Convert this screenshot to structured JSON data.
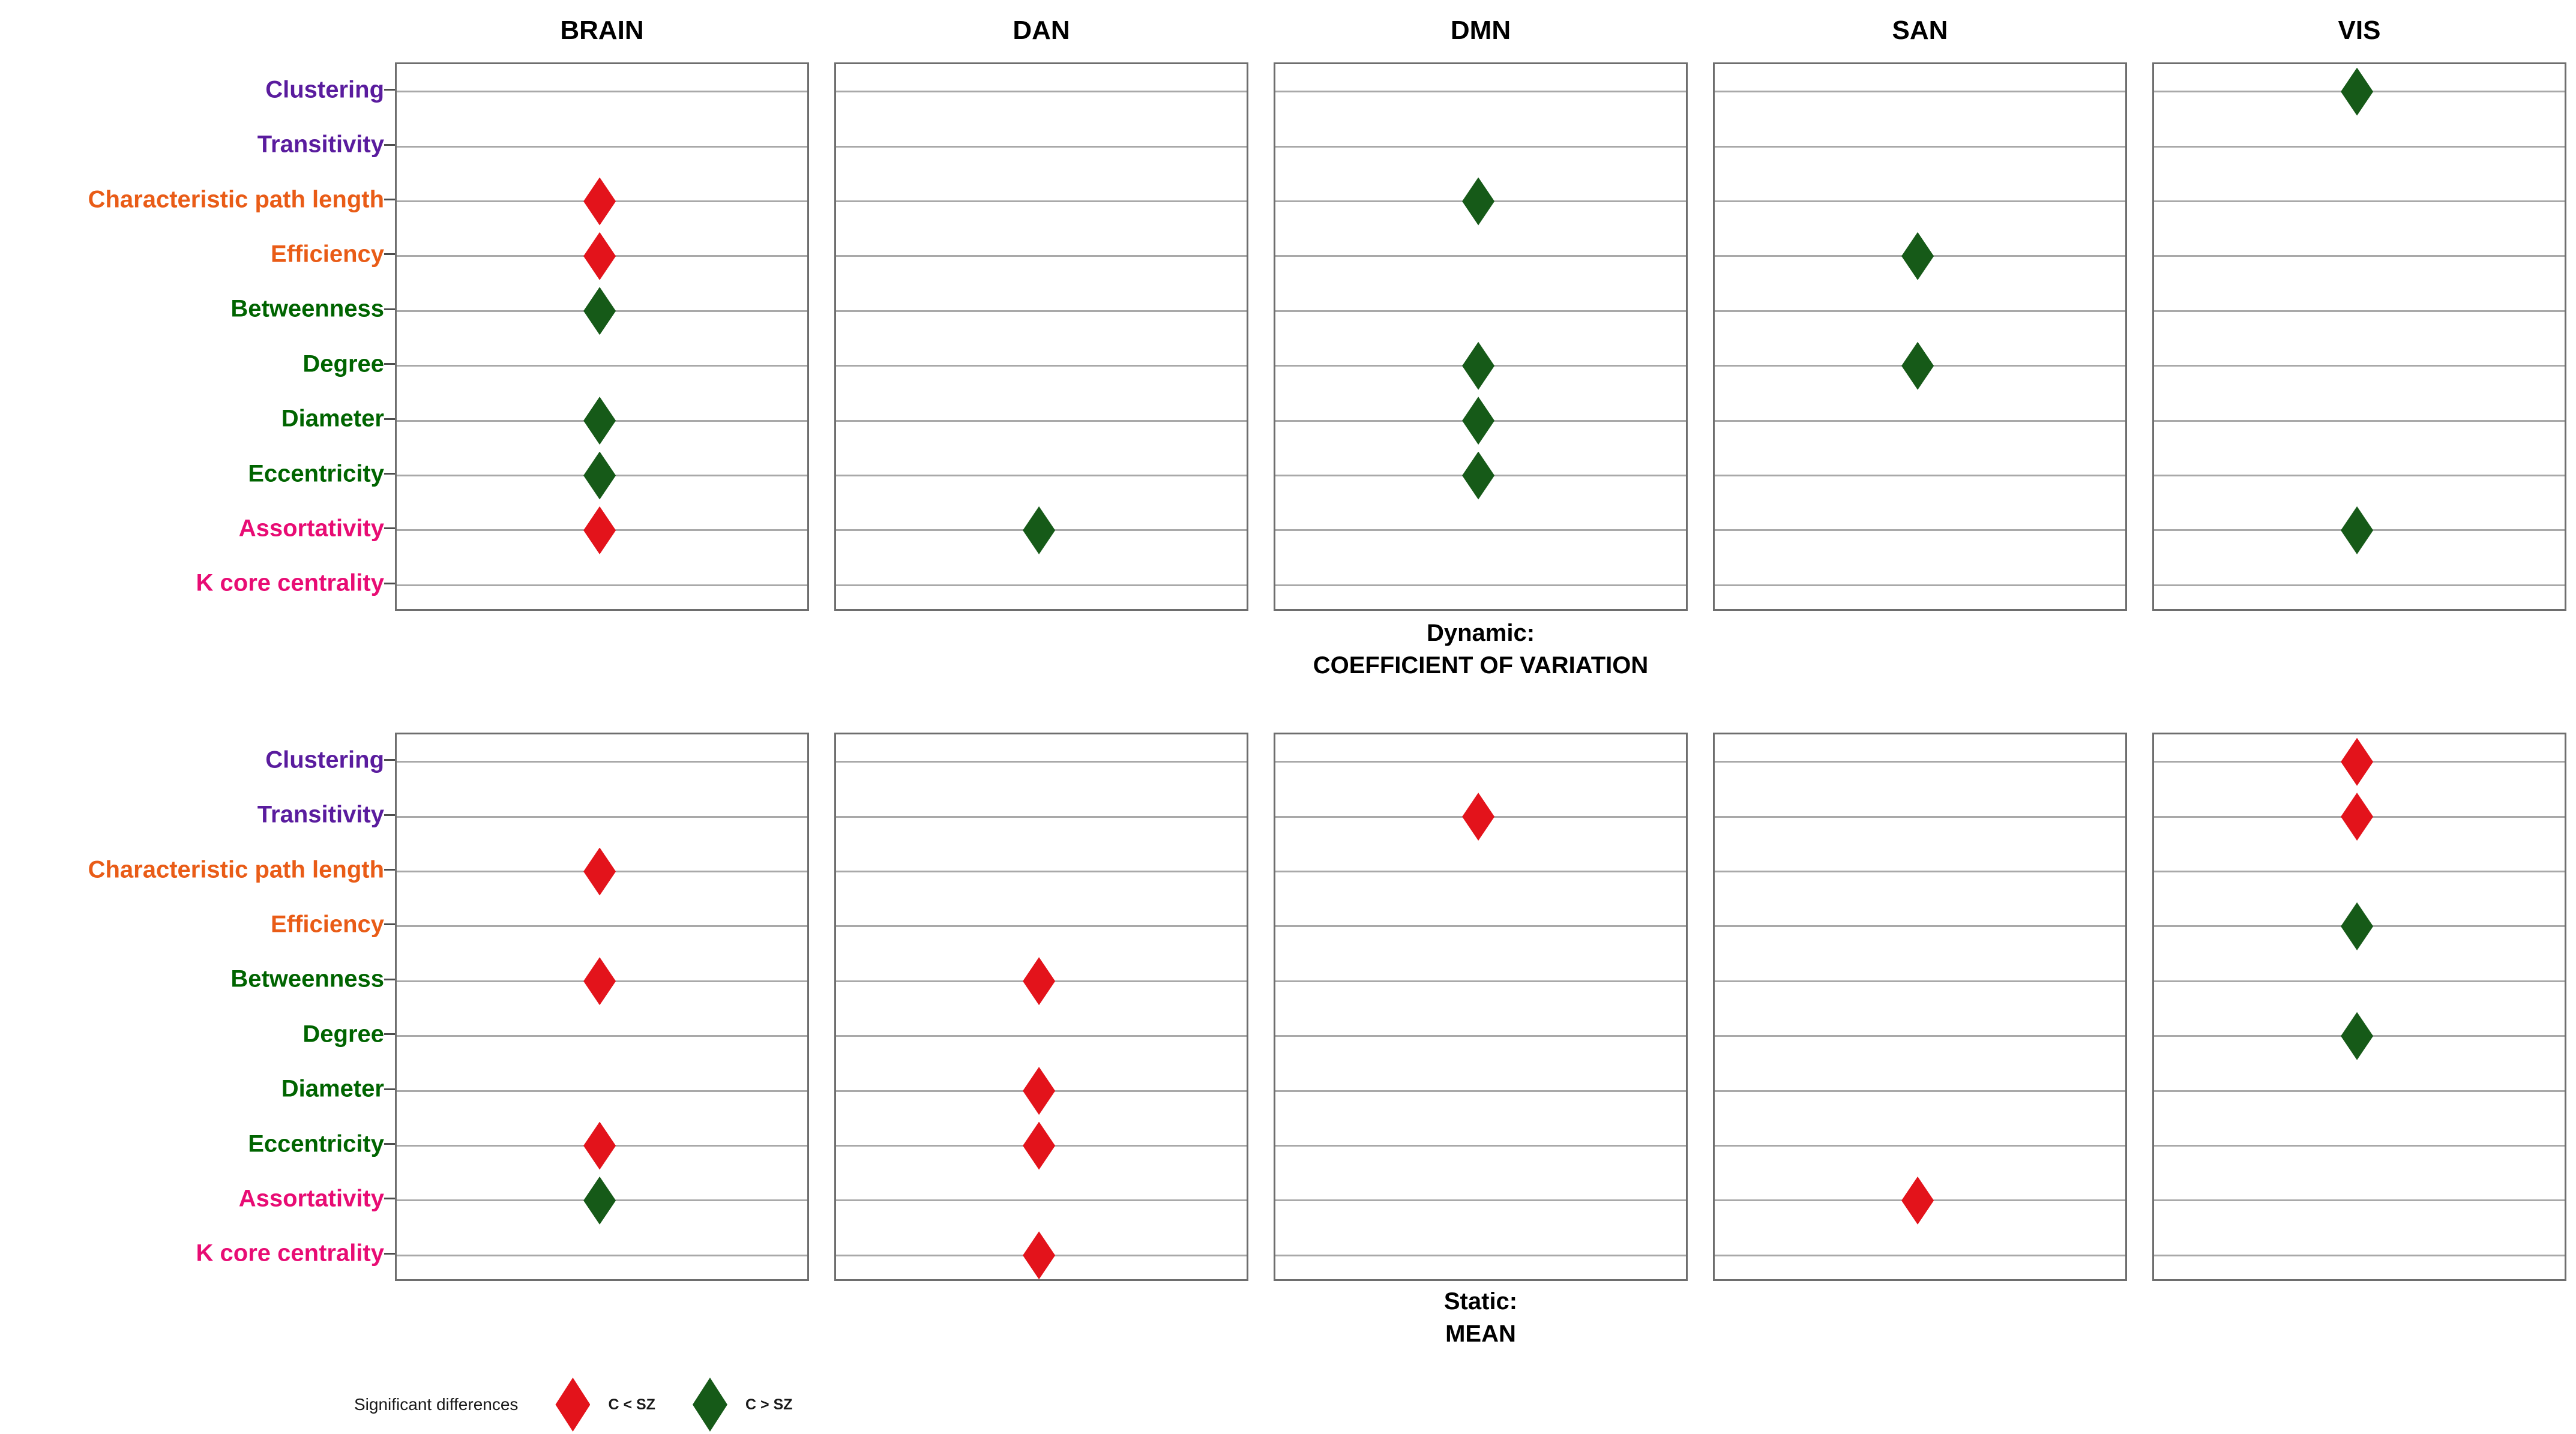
{
  "chart_data": {
    "type": "scatter",
    "description": "Faceted diamond dot-plot of significant group differences (C vs SZ) in graph metrics across brain networks",
    "networks": [
      "BRAIN",
      "DAN",
      "DMN",
      "SAN",
      "VIS"
    ],
    "metrics": [
      {
        "label": "Clustering",
        "color": "#5A1C9E"
      },
      {
        "label": "Transitivity",
        "color": "#5A1C9E"
      },
      {
        "label": "Characteristic path length",
        "color": "#E95C17"
      },
      {
        "label": "Efficiency",
        "color": "#E95C17"
      },
      {
        "label": "Betweenness",
        "color": "#006400"
      },
      {
        "label": "Degree",
        "color": "#006400"
      },
      {
        "label": "Diameter",
        "color": "#006400"
      },
      {
        "label": "Eccentricity",
        "color": "#006400"
      },
      {
        "label": "Assortativity",
        "color": "#E80C74"
      },
      {
        "label": "K core centrality",
        "color": "#E80C74"
      }
    ],
    "facets": [
      {
        "caption_lines": [
          "Dynamic:",
          "COEFFICIENT OF VARIATION"
        ],
        "points": [
          {
            "network": "BRAIN",
            "metric": "Characteristic path length",
            "sig": "C < SZ"
          },
          {
            "network": "BRAIN",
            "metric": "Efficiency",
            "sig": "C < SZ"
          },
          {
            "network": "BRAIN",
            "metric": "Betweenness",
            "sig": "C > SZ"
          },
          {
            "network": "BRAIN",
            "metric": "Diameter",
            "sig": "C > SZ"
          },
          {
            "network": "BRAIN",
            "metric": "Eccentricity",
            "sig": "C > SZ"
          },
          {
            "network": "BRAIN",
            "metric": "Assortativity",
            "sig": "C < SZ"
          },
          {
            "network": "DAN",
            "metric": "Assortativity",
            "sig": "C > SZ"
          },
          {
            "network": "DMN",
            "metric": "Characteristic path length",
            "sig": "C > SZ"
          },
          {
            "network": "DMN",
            "metric": "Degree",
            "sig": "C > SZ"
          },
          {
            "network": "DMN",
            "metric": "Diameter",
            "sig": "C > SZ"
          },
          {
            "network": "DMN",
            "metric": "Eccentricity",
            "sig": "C > SZ"
          },
          {
            "network": "SAN",
            "metric": "Efficiency",
            "sig": "C > SZ"
          },
          {
            "network": "SAN",
            "metric": "Degree",
            "sig": "C > SZ"
          },
          {
            "network": "VIS",
            "metric": "Clustering",
            "sig": "C > SZ"
          },
          {
            "network": "VIS",
            "metric": "Assortativity",
            "sig": "C > SZ"
          }
        ]
      },
      {
        "caption_lines": [
          "Static:",
          "MEAN"
        ],
        "points": [
          {
            "network": "BRAIN",
            "metric": "Characteristic path length",
            "sig": "C < SZ"
          },
          {
            "network": "BRAIN",
            "metric": "Betweenness",
            "sig": "C < SZ"
          },
          {
            "network": "BRAIN",
            "metric": "Eccentricity",
            "sig": "C < SZ"
          },
          {
            "network": "BRAIN",
            "metric": "Assortativity",
            "sig": "C > SZ"
          },
          {
            "network": "DAN",
            "metric": "Betweenness",
            "sig": "C < SZ"
          },
          {
            "network": "DAN",
            "metric": "Diameter",
            "sig": "C < SZ"
          },
          {
            "network": "DAN",
            "metric": "Eccentricity",
            "sig": "C < SZ"
          },
          {
            "network": "DAN",
            "metric": "K core centrality",
            "sig": "C < SZ"
          },
          {
            "network": "DMN",
            "metric": "Transitivity",
            "sig": "C < SZ"
          },
          {
            "network": "SAN",
            "metric": "Assortativity",
            "sig": "C < SZ"
          },
          {
            "network": "VIS",
            "metric": "Clustering",
            "sig": "C < SZ"
          },
          {
            "network": "VIS",
            "metric": "Transitivity",
            "sig": "C < SZ"
          },
          {
            "network": "VIS",
            "metric": "Efficiency",
            "sig": "C > SZ"
          },
          {
            "network": "VIS",
            "metric": "Degree",
            "sig": "C > SZ"
          }
        ]
      }
    ],
    "legend": {
      "title": "Significant differences",
      "items": [
        {
          "label": "C < SZ",
          "color": "#E3131B"
        },
        {
          "label": "C > SZ",
          "color": "#165A18"
        }
      ]
    },
    "colors": {
      "marker_red": "#E3131B",
      "marker_green": "#165A18",
      "gridline": "#A9A9A9",
      "panel_border": "#6E6E6E",
      "tick": "#4D4D4D"
    },
    "layout": {
      "grid": "on",
      "legend_position": "bottom-left",
      "x_axis": "none (single column per panel)"
    }
  }
}
